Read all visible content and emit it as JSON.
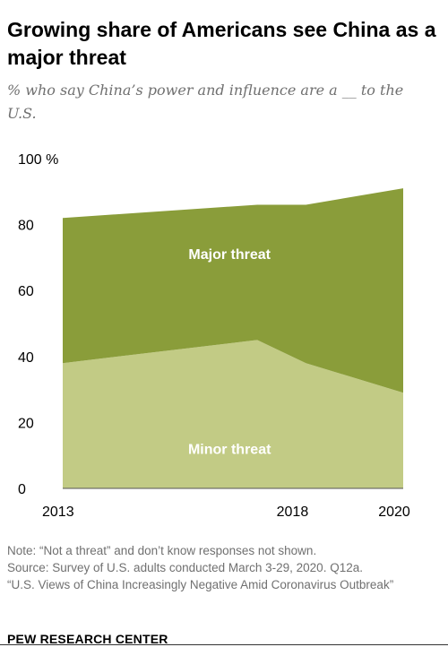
{
  "title": "Growing share of Americans see China as a major threat",
  "subtitle": "% who say China’s power and influence are a __ to the U.S.",
  "chart_data": {
    "type": "area",
    "stacked": true,
    "x": [
      2013,
      2017,
      2018,
      2020
    ],
    "x_tick_labels": [
      "2013",
      "2018",
      "2020"
    ],
    "x_tick_values": [
      2013,
      2018,
      2020
    ],
    "y_tick_labels": [
      "100 %",
      "80",
      "60",
      "40",
      "20",
      "0"
    ],
    "y_tick_values": [
      100,
      80,
      60,
      40,
      20,
      0
    ],
    "ylim": [
      0,
      100
    ],
    "series": [
      {
        "name": "Minor threat",
        "values": [
          38,
          45,
          38,
          29
        ],
        "color": "#c2cb85"
      },
      {
        "name": "Major threat",
        "values": [
          44,
          41,
          48,
          62
        ],
        "color": "#8a9d3a"
      }
    ],
    "grid": false,
    "legend": "inline labels"
  },
  "notes": {
    "note": "Note: “Not a threat” and don’t know responses not shown.",
    "source": "Source: Survey of U.S. adults conducted March 3-29, 2020. Q12a.",
    "report": "“U.S. Views of China Increasingly Negative Amid Coronavirus Outbreak”"
  },
  "branding": "PEW RESEARCH CENTER"
}
